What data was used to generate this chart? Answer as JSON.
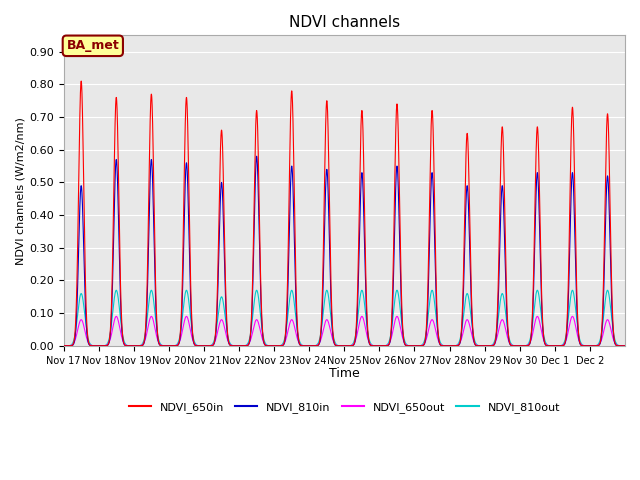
{
  "title": "NDVI channels",
  "ylabel": "NDVI channels (W/m2/nm)",
  "xlabel": "Time",
  "ylim": [
    0.0,
    0.95
  ],
  "yticks": [
    0.0,
    0.1,
    0.2,
    0.3,
    0.4,
    0.5,
    0.6,
    0.7,
    0.8,
    0.9
  ],
  "xtick_labels": [
    "Nov 17",
    "Nov 18",
    "Nov 19",
    "Nov 20",
    "Nov 21",
    "Nov 22",
    "Nov 23",
    "Nov 24",
    "Nov 25",
    "Nov 26",
    "Nov 27",
    "Nov 28",
    "Nov 29",
    "Nov 30",
    "Dec 1",
    "Dec 2"
  ],
  "color_650in": "#FF0000",
  "color_810in": "#0000CC",
  "color_650out": "#FF00FF",
  "color_810out": "#00CCCC",
  "bg_color": "#E8E8E8",
  "annotation_text": "BA_met",
  "annotation_bg": "#FFFF99",
  "annotation_border": "#8B0000",
  "legend_labels": [
    "NDVI_650in",
    "NDVI_810in",
    "NDVI_650out",
    "NDVI_810out"
  ],
  "peak_650in": [
    0.81,
    0.76,
    0.77,
    0.76,
    0.66,
    0.72,
    0.78,
    0.75,
    0.72,
    0.74,
    0.72,
    0.65,
    0.67,
    0.67,
    0.73,
    0.71
  ],
  "peak_810in": [
    0.49,
    0.57,
    0.57,
    0.56,
    0.5,
    0.58,
    0.55,
    0.54,
    0.53,
    0.55,
    0.53,
    0.49,
    0.49,
    0.53,
    0.53,
    0.52
  ],
  "peak_650out": [
    0.08,
    0.09,
    0.09,
    0.09,
    0.08,
    0.08,
    0.08,
    0.08,
    0.09,
    0.09,
    0.08,
    0.08,
    0.08,
    0.09,
    0.09,
    0.08
  ],
  "peak_810out": [
    0.16,
    0.17,
    0.17,
    0.17,
    0.15,
    0.17,
    0.17,
    0.17,
    0.17,
    0.17,
    0.17,
    0.16,
    0.16,
    0.17,
    0.17,
    0.17
  ],
  "n_days": 16,
  "points_per_day": 500
}
